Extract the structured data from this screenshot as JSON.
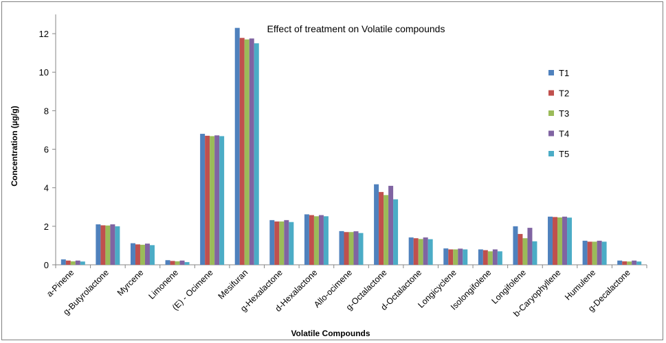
{
  "chart_data": {
    "type": "bar",
    "title": "Effect of treatment on Volatile compounds",
    "xlabel": "Volatile Compounds",
    "ylabel": "Concentration (µg/g)",
    "ylim": [
      0,
      13
    ],
    "yticks": [
      0,
      2,
      4,
      6,
      8,
      10,
      12
    ],
    "grid": false,
    "legend_position": "right",
    "categories": [
      "a-Pinene",
      "g-Butyrolactone",
      "Myrcene",
      "Limonene",
      "(E) - Ocimene",
      "Mesifuran",
      "g-Hexalactone",
      "d-Hexalactone",
      "Allo-ocimene",
      "g-Octalactone",
      "d-Octalactone",
      "Longicyclene",
      "Isolongifolene",
      "Longifolene",
      "b-Caryophyllene",
      "Humulene",
      "g-Decalactone"
    ],
    "series": [
      {
        "name": "T1",
        "color": "#4f81bd",
        "values": [
          0.28,
          2.1,
          1.12,
          0.24,
          6.8,
          12.3,
          2.32,
          2.62,
          1.75,
          4.18,
          1.42,
          0.85,
          0.8,
          2.0,
          2.5,
          1.25,
          0.22
        ]
      },
      {
        "name": "T2",
        "color": "#c0504d",
        "values": [
          0.22,
          2.05,
          1.06,
          0.2,
          6.7,
          11.78,
          2.25,
          2.58,
          1.7,
          3.78,
          1.38,
          0.8,
          0.76,
          1.6,
          2.48,
          1.2,
          0.18
        ]
      },
      {
        "name": "T3",
        "color": "#9bbb59",
        "values": [
          0.18,
          2.04,
          1.04,
          0.18,
          6.68,
          11.7,
          2.25,
          2.52,
          1.7,
          3.62,
          1.34,
          0.8,
          0.7,
          1.38,
          2.46,
          1.2,
          0.17
        ]
      },
      {
        "name": "T4",
        "color": "#8064a2",
        "values": [
          0.22,
          2.1,
          1.1,
          0.22,
          6.72,
          11.75,
          2.32,
          2.58,
          1.74,
          4.1,
          1.42,
          0.84,
          0.8,
          1.92,
          2.5,
          1.25,
          0.22
        ]
      },
      {
        "name": "T5",
        "color": "#4bacc6",
        "values": [
          0.17,
          2.0,
          1.02,
          0.14,
          6.68,
          11.5,
          2.22,
          2.52,
          1.65,
          3.4,
          1.33,
          0.8,
          0.7,
          1.22,
          2.45,
          1.2,
          0.17
        ]
      }
    ]
  }
}
